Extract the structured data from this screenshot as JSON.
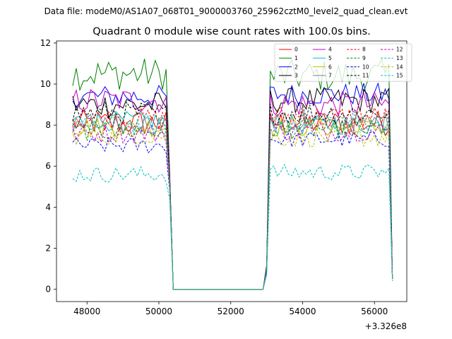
{
  "suptitle": "Data file: modeM0/AS1A07_068T01_9000003760_25962cztM0_level2_quad_clean.evt",
  "chart_data": {
    "type": "line",
    "title": "Quadrant 0 module wise count rates with 100.0s bins.",
    "xlabel": "",
    "ylabel": "",
    "x_offset_label": "+3.326e8",
    "x_offset": 332600000,
    "xlim": [
      47150,
      56900
    ],
    "ylim": [
      -0.6,
      12.1
    ],
    "xticks": [
      48000,
      50000,
      52000,
      54000,
      56000
    ],
    "xtick_labels": [
      "48000",
      "50000",
      "52000",
      "54000",
      "56000"
    ],
    "yticks": [
      0,
      2,
      4,
      6,
      8,
      10,
      12
    ],
    "ytick_labels": [
      "0",
      "2",
      "4",
      "6",
      "8",
      "10",
      "12"
    ],
    "grid": false,
    "legend_position": "top-right",
    "legend_columns": 4,
    "segments": [
      {
        "x_start": 47600,
        "x_end": 50200,
        "step": 100
      },
      {
        "x_start": 53100,
        "x_end": 56400,
        "step": 100
      }
    ],
    "transition_x": [
      50300,
      50400,
      52900,
      53000
    ],
    "end_x": 56500,
    "gap_value": 0,
    "series": [
      {
        "name": "0",
        "color": "#ff0000",
        "dash": "solid",
        "level1": 8.1,
        "level2": 8.1,
        "amp": 0.4,
        "edge": [
          5.5,
          0.4,
          1.0,
          0.5
        ]
      },
      {
        "name": "1",
        "color": "#008000",
        "dash": "solid",
        "level1": 10.5,
        "level2": 10.4,
        "amp": 0.5,
        "edge": [
          5.7,
          0.5,
          1.2,
          0.5
        ]
      },
      {
        "name": "2",
        "color": "#0000ff",
        "dash": "solid",
        "level1": 9.4,
        "level2": 9.5,
        "amp": 0.35,
        "edge": [
          5.6,
          0.5,
          1.1,
          0.5
        ]
      },
      {
        "name": "3",
        "color": "#000000",
        "dash": "solid",
        "level1": 9.0,
        "level2": 9.2,
        "amp": 0.4,
        "edge": [
          5.5,
          0.4,
          1.0,
          0.5
        ]
      },
      {
        "name": "4",
        "color": "#bf00bf",
        "dash": "solid",
        "level1": 9.2,
        "level2": 9.0,
        "amp": 0.4,
        "edge": [
          5.5,
          0.4,
          1.0,
          0.5
        ]
      },
      {
        "name": "5",
        "color": "#00bfbf",
        "dash": "solid",
        "level1": 8.2,
        "level2": 8.0,
        "amp": 0.3,
        "edge": [
          5.2,
          0.4,
          0.9,
          0.5
        ]
      },
      {
        "name": "6",
        "color": "#bfbf00",
        "dash": "solid",
        "level1": 7.9,
        "level2": 7.9,
        "amp": 0.3,
        "edge": [
          5.1,
          0.4,
          0.9,
          0.5
        ]
      },
      {
        "name": "7",
        "color": "#808080",
        "dash": "solid",
        "level1": 8.0,
        "level2": 8.1,
        "amp": 0.35,
        "edge": [
          5.2,
          0.4,
          0.9,
          0.5
        ]
      },
      {
        "name": "8",
        "color": "#ff0000",
        "dash": "dashed",
        "level1": 8.3,
        "level2": 8.4,
        "amp": 0.35,
        "edge": [
          5.3,
          0.4,
          1.0,
          0.5
        ]
      },
      {
        "name": "9",
        "color": "#008000",
        "dash": "dashed",
        "level1": 7.7,
        "level2": 7.8,
        "amp": 0.3,
        "edge": [
          5.0,
          0.4,
          0.9,
          0.5
        ]
      },
      {
        "name": "10",
        "color": "#0000ff",
        "dash": "dashed",
        "level1": 7.0,
        "level2": 7.3,
        "amp": 0.25,
        "edge": [
          4.8,
          0.4,
          0.8,
          0.5
        ]
      },
      {
        "name": "11",
        "color": "#000000",
        "dash": "dashed",
        "level1": 8.6,
        "level2": 8.6,
        "amp": 0.35,
        "edge": [
          5.4,
          0.4,
          1.0,
          0.5
        ]
      },
      {
        "name": "12",
        "color": "#bf00bf",
        "dash": "dashed",
        "level1": 7.6,
        "level2": 7.7,
        "amp": 0.3,
        "edge": [
          5.0,
          0.4,
          0.9,
          0.5
        ]
      },
      {
        "name": "13",
        "color": "#00bfbf",
        "dash": "dashed",
        "level1": 5.6,
        "level2": 5.7,
        "amp": 0.25,
        "edge": [
          4.4,
          0.4,
          0.7,
          0.4
        ]
      },
      {
        "name": "14",
        "color": "#bfbf00",
        "dash": "dashed",
        "level1": 7.5,
        "level2": 7.4,
        "amp": 0.3,
        "edge": [
          5.0,
          0.4,
          0.9,
          0.5
        ]
      },
      {
        "name": "15",
        "color": "#00bfbf",
        "dash": "dashed",
        "level1": 8.0,
        "level2": 8.2,
        "amp": 0.3,
        "edge": [
          5.2,
          0.4,
          0.9,
          0.5
        ]
      }
    ]
  }
}
